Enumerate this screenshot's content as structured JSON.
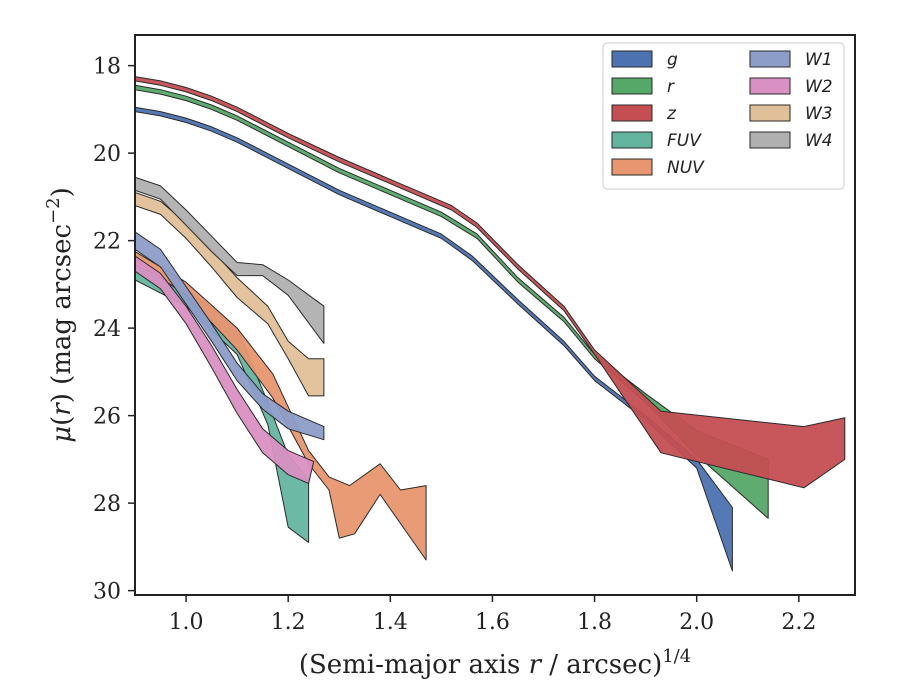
{
  "chart_data": {
    "type": "area",
    "xlabel": "(Semi-major axis r / arcsec)^1/4",
    "ylabel": "μ(r) (mag arcsec^−2)",
    "xlim": [
      0.9,
      2.31
    ],
    "ylim": [
      30.1,
      17.3
    ],
    "y_inverted": true,
    "x_ticks": [
      "1.0",
      "1.2",
      "1.4",
      "1.6",
      "1.8",
      "2.0",
      "2.2"
    ],
    "x_tick_values": [
      1.0,
      1.2,
      1.4,
      1.6,
      1.8,
      2.0,
      2.2
    ],
    "y_ticks": [
      "18",
      "20",
      "22",
      "24",
      "26",
      "28",
      "30"
    ],
    "y_tick_values": [
      18,
      20,
      22,
      24,
      26,
      28,
      30
    ],
    "grid": false,
    "legend_position": "top-right",
    "legend_columns": 2,
    "series": [
      {
        "name": "g",
        "color": "#4c72b0",
        "upper": [
          [
            0.9,
            18.95
          ],
          [
            0.95,
            19.05
          ],
          [
            1.0,
            19.2
          ],
          [
            1.05,
            19.4
          ],
          [
            1.1,
            19.65
          ],
          [
            1.15,
            19.95
          ],
          [
            1.2,
            20.25
          ],
          [
            1.3,
            20.85
          ],
          [
            1.4,
            21.35
          ],
          [
            1.5,
            21.85
          ],
          [
            1.56,
            22.35
          ],
          [
            1.65,
            23.35
          ],
          [
            1.74,
            24.3
          ],
          [
            1.8,
            25.1
          ],
          [
            1.9,
            26.0
          ],
          [
            2.0,
            27.0
          ],
          [
            2.07,
            28.1
          ]
        ],
        "lower": [
          [
            0.9,
            19.05
          ],
          [
            0.95,
            19.15
          ],
          [
            1.0,
            19.3
          ],
          [
            1.05,
            19.5
          ],
          [
            1.1,
            19.75
          ],
          [
            1.15,
            20.05
          ],
          [
            1.2,
            20.35
          ],
          [
            1.3,
            20.95
          ],
          [
            1.4,
            21.45
          ],
          [
            1.5,
            21.95
          ],
          [
            1.56,
            22.45
          ],
          [
            1.65,
            23.45
          ],
          [
            1.74,
            24.4
          ],
          [
            1.8,
            25.2
          ],
          [
            1.9,
            26.1
          ],
          [
            2.0,
            27.2
          ],
          [
            2.07,
            29.55
          ]
        ]
      },
      {
        "name": "r",
        "color": "#55a868",
        "upper": [
          [
            0.9,
            18.45
          ],
          [
            0.95,
            18.55
          ],
          [
            1.0,
            18.7
          ],
          [
            1.05,
            18.9
          ],
          [
            1.1,
            19.15
          ],
          [
            1.15,
            19.45
          ],
          [
            1.2,
            19.75
          ],
          [
            1.3,
            20.35
          ],
          [
            1.4,
            20.85
          ],
          [
            1.5,
            21.35
          ],
          [
            1.57,
            21.85
          ],
          [
            1.65,
            22.85
          ],
          [
            1.74,
            23.75
          ],
          [
            1.8,
            24.6
          ],
          [
            1.9,
            25.5
          ],
          [
            2.0,
            26.35
          ],
          [
            2.14,
            27.0
          ]
        ],
        "lower": [
          [
            0.9,
            18.55
          ],
          [
            0.95,
            18.65
          ],
          [
            1.0,
            18.8
          ],
          [
            1.05,
            19.0
          ],
          [
            1.1,
            19.25
          ],
          [
            1.15,
            19.55
          ],
          [
            1.2,
            19.85
          ],
          [
            1.3,
            20.45
          ],
          [
            1.4,
            20.95
          ],
          [
            1.5,
            21.45
          ],
          [
            1.57,
            21.95
          ],
          [
            1.65,
            22.95
          ],
          [
            1.74,
            23.85
          ],
          [
            1.8,
            24.7
          ],
          [
            1.9,
            25.7
          ],
          [
            2.0,
            26.9
          ],
          [
            2.14,
            28.35
          ]
        ]
      },
      {
        "name": "z",
        "color": "#c44e52",
        "upper": [
          [
            0.9,
            18.25
          ],
          [
            0.95,
            18.35
          ],
          [
            1.0,
            18.5
          ],
          [
            1.05,
            18.7
          ],
          [
            1.1,
            18.95
          ],
          [
            1.15,
            19.25
          ],
          [
            1.2,
            19.55
          ],
          [
            1.3,
            20.1
          ],
          [
            1.4,
            20.6
          ],
          [
            1.52,
            21.2
          ],
          [
            1.57,
            21.6
          ],
          [
            1.65,
            22.55
          ],
          [
            1.74,
            23.5
          ],
          [
            1.8,
            24.5
          ],
          [
            1.93,
            25.9
          ],
          [
            2.21,
            26.25
          ],
          [
            2.29,
            26.05
          ]
        ],
        "lower": [
          [
            0.9,
            18.35
          ],
          [
            0.95,
            18.45
          ],
          [
            1.0,
            18.6
          ],
          [
            1.05,
            18.8
          ],
          [
            1.1,
            19.05
          ],
          [
            1.15,
            19.35
          ],
          [
            1.2,
            19.65
          ],
          [
            1.3,
            20.2
          ],
          [
            1.4,
            20.7
          ],
          [
            1.52,
            21.3
          ],
          [
            1.57,
            21.7
          ],
          [
            1.65,
            22.65
          ],
          [
            1.74,
            23.6
          ],
          [
            1.8,
            24.6
          ],
          [
            1.93,
            26.85
          ],
          [
            2.21,
            27.65
          ],
          [
            2.29,
            27.0
          ]
        ]
      },
      {
        "name": "FUV",
        "color": "#64b5a0",
        "upper": [
          [
            0.9,
            22.55
          ],
          [
            1.0,
            23.1
          ],
          [
            1.1,
            24.0
          ],
          [
            1.16,
            25.7
          ],
          [
            1.2,
            26.9
          ],
          [
            1.24,
            27.45
          ]
        ],
        "lower": [
          [
            0.9,
            22.9
          ],
          [
            1.0,
            23.5
          ],
          [
            1.1,
            24.6
          ],
          [
            1.16,
            26.2
          ],
          [
            1.2,
            28.55
          ],
          [
            1.24,
            28.9
          ]
        ]
      },
      {
        "name": "NUV",
        "color": "#e8966f",
        "upper": [
          [
            0.9,
            22.25
          ],
          [
            1.0,
            22.95
          ],
          [
            1.1,
            24.0
          ],
          [
            1.17,
            25.05
          ],
          [
            1.24,
            26.8
          ],
          [
            1.28,
            27.4
          ],
          [
            1.32,
            27.6
          ],
          [
            1.38,
            27.1
          ],
          [
            1.42,
            27.7
          ],
          [
            1.47,
            27.6
          ]
        ],
        "lower": [
          [
            0.9,
            22.45
          ],
          [
            1.0,
            23.25
          ],
          [
            1.1,
            24.5
          ],
          [
            1.17,
            25.6
          ],
          [
            1.24,
            27.1
          ],
          [
            1.28,
            27.7
          ],
          [
            1.3,
            28.8
          ],
          [
            1.33,
            28.7
          ],
          [
            1.38,
            27.8
          ],
          [
            1.47,
            29.3
          ]
        ]
      },
      {
        "name": "W1",
        "color": "#8c9dc8",
        "upper": [
          [
            0.9,
            21.8
          ],
          [
            0.95,
            22.2
          ],
          [
            1.0,
            23.05
          ],
          [
            1.05,
            23.9
          ],
          [
            1.1,
            24.8
          ],
          [
            1.15,
            25.5
          ],
          [
            1.2,
            25.9
          ],
          [
            1.27,
            26.25
          ]
        ],
        "lower": [
          [
            0.9,
            22.2
          ],
          [
            0.95,
            22.6
          ],
          [
            1.0,
            23.45
          ],
          [
            1.05,
            24.3
          ],
          [
            1.1,
            25.2
          ],
          [
            1.15,
            25.85
          ],
          [
            1.2,
            26.3
          ],
          [
            1.27,
            26.55
          ]
        ]
      },
      {
        "name": "W2",
        "color": "#d990c2",
        "upper": [
          [
            0.9,
            22.35
          ],
          [
            0.95,
            22.75
          ],
          [
            1.0,
            23.5
          ],
          [
            1.05,
            24.4
          ],
          [
            1.1,
            25.4
          ],
          [
            1.15,
            26.3
          ],
          [
            1.2,
            26.8
          ],
          [
            1.25,
            27.05
          ]
        ],
        "lower": [
          [
            0.9,
            22.7
          ],
          [
            0.95,
            23.1
          ],
          [
            1.0,
            23.9
          ],
          [
            1.05,
            24.9
          ],
          [
            1.1,
            25.95
          ],
          [
            1.15,
            26.85
          ],
          [
            1.2,
            27.35
          ],
          [
            1.24,
            27.55
          ]
        ]
      },
      {
        "name": "W3",
        "color": "#e0c098",
        "upper": [
          [
            0.9,
            20.9
          ],
          [
            0.95,
            21.1
          ],
          [
            1.0,
            21.6
          ],
          [
            1.05,
            22.2
          ],
          [
            1.1,
            22.85
          ],
          [
            1.16,
            23.5
          ],
          [
            1.2,
            24.3
          ],
          [
            1.24,
            24.7
          ],
          [
            1.27,
            24.7
          ]
        ],
        "lower": [
          [
            0.9,
            21.2
          ],
          [
            0.95,
            21.4
          ],
          [
            1.0,
            21.95
          ],
          [
            1.05,
            22.6
          ],
          [
            1.1,
            23.3
          ],
          [
            1.16,
            23.9
          ],
          [
            1.2,
            24.7
          ],
          [
            1.24,
            25.55
          ],
          [
            1.27,
            25.55
          ]
        ]
      },
      {
        "name": "W4",
        "color": "#b0b0b0",
        "upper": [
          [
            0.9,
            20.55
          ],
          [
            0.95,
            20.75
          ],
          [
            1.0,
            21.3
          ],
          [
            1.05,
            21.9
          ],
          [
            1.1,
            22.5
          ],
          [
            1.15,
            22.55
          ],
          [
            1.2,
            22.9
          ],
          [
            1.27,
            23.5
          ]
        ],
        "lower": [
          [
            0.9,
            20.85
          ],
          [
            0.95,
            21.05
          ],
          [
            1.0,
            21.65
          ],
          [
            1.05,
            22.25
          ],
          [
            1.1,
            22.8
          ],
          [
            1.15,
            22.8
          ],
          [
            1.2,
            23.25
          ],
          [
            1.27,
            24.35
          ]
        ]
      }
    ]
  }
}
